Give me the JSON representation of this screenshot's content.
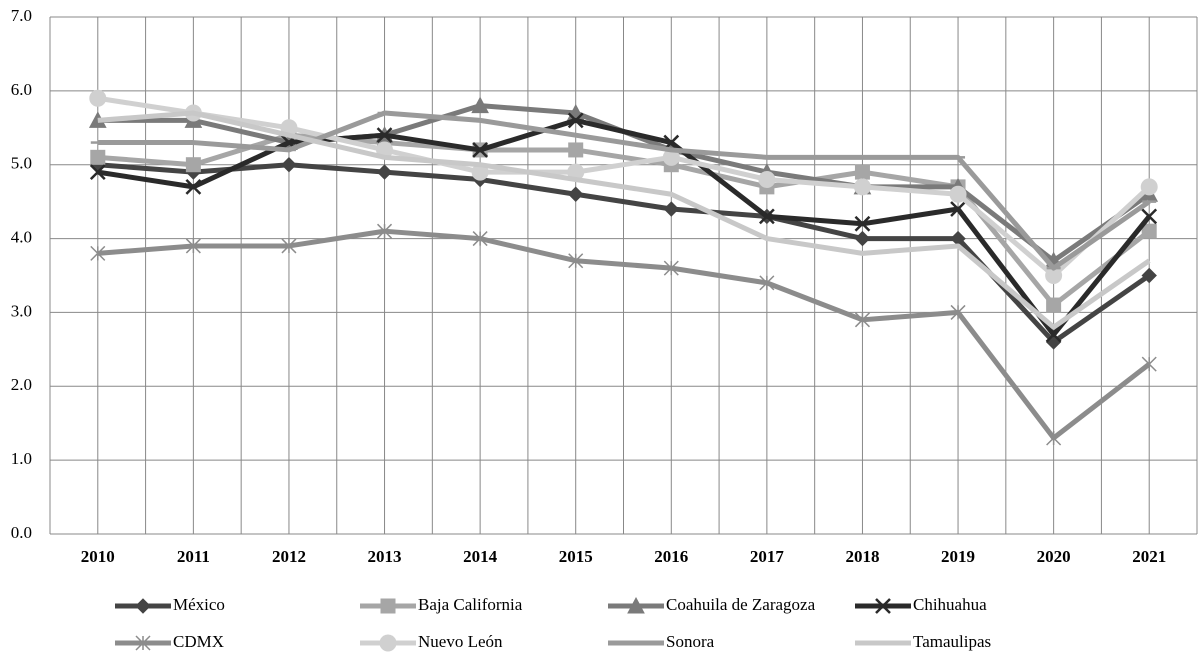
{
  "chart_data": {
    "type": "line",
    "categories": [
      "2010",
      "2011",
      "2012",
      "2013",
      "2014",
      "2015",
      "2016",
      "2017",
      "2018",
      "2019",
      "2020",
      "2021"
    ],
    "ylim": [
      0,
      7
    ],
    "yticks": [
      {
        "value": 0,
        "label": "0.0"
      },
      {
        "value": 1,
        "label": "1.0"
      },
      {
        "value": 2,
        "label": "2.0"
      },
      {
        "value": 3,
        "label": "3.0"
      },
      {
        "value": 4,
        "label": "4.0"
      },
      {
        "value": 5,
        "label": "5.0"
      },
      {
        "value": 6,
        "label": "6.0"
      },
      {
        "value": 7,
        "label": "7.0"
      }
    ],
    "grid": true,
    "legend": "bottom",
    "series": [
      {
        "name": "México",
        "color": "#444444",
        "marker": "diamond",
        "values": [
          5.0,
          4.9,
          5.0,
          4.9,
          4.8,
          4.6,
          4.4,
          4.3,
          4.0,
          4.0,
          2.6,
          3.5
        ]
      },
      {
        "name": "Baja California",
        "color": "#a6a6a6",
        "marker": "square",
        "values": [
          5.1,
          5.0,
          5.4,
          5.3,
          5.2,
          5.2,
          5.0,
          4.7,
          4.9,
          4.7,
          3.1,
          4.1
        ]
      },
      {
        "name": "Coahuila de Zaragoza",
        "color": "#7a7a7a",
        "marker": "triangle",
        "values": [
          5.6,
          5.6,
          5.3,
          5.4,
          5.8,
          5.7,
          5.2,
          4.9,
          4.7,
          4.7,
          3.7,
          4.6
        ]
      },
      {
        "name": "Chihuahua",
        "color": "#2a2a2a",
        "marker": "x",
        "values": [
          4.9,
          4.7,
          5.3,
          5.4,
          5.2,
          5.6,
          5.3,
          4.3,
          4.2,
          4.4,
          2.7,
          4.3
        ]
      },
      {
        "name": "CDMX",
        "color": "#8c8c8c",
        "marker": "star",
        "values": [
          3.8,
          3.9,
          3.9,
          4.1,
          4.0,
          3.7,
          3.6,
          3.4,
          2.9,
          3.0,
          1.3,
          2.3
        ]
      },
      {
        "name": "Nuevo León",
        "color": "#d0d0d0",
        "marker": "circle",
        "values": [
          5.9,
          5.7,
          5.5,
          5.2,
          4.9,
          4.9,
          5.1,
          4.8,
          4.7,
          4.6,
          3.5,
          4.7
        ]
      },
      {
        "name": "Sonora",
        "color": "#9a9a9a",
        "marker": "dash",
        "values": [
          5.3,
          5.3,
          5.2,
          5.7,
          5.6,
          5.4,
          5.2,
          5.1,
          5.1,
          5.1,
          3.6,
          4.5
        ]
      },
      {
        "name": "Tamaulipas",
        "color": "#c8c8c8",
        "marker": "none",
        "values": [
          5.6,
          5.7,
          5.4,
          5.1,
          5.0,
          4.8,
          4.6,
          4.0,
          3.8,
          3.9,
          2.8,
          3.7
        ]
      }
    ]
  }
}
